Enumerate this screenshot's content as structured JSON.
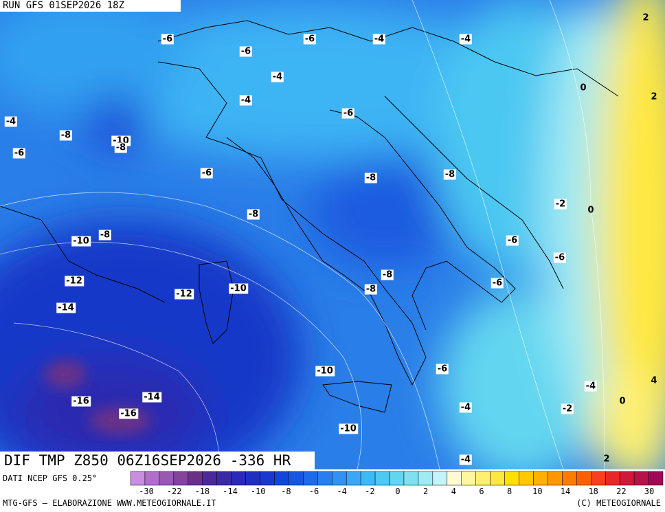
{
  "header": {
    "title": "RUN GFS 01SEP2026 18Z"
  },
  "map": {
    "contour_labels": [
      -6,
      -6,
      -4,
      -4,
      2,
      -6,
      -4,
      0,
      2,
      -4,
      -6,
      -4,
      -8,
      -10,
      -8,
      -6,
      -6,
      -8,
      -8,
      -2,
      0,
      -8,
      -8,
      -10,
      -6,
      -6,
      -8,
      -12,
      -6,
      -10,
      -8,
      -12,
      -14,
      -6,
      -10,
      4,
      -4,
      -14,
      0,
      -16,
      -4,
      -2,
      -16,
      -10,
      -4,
      2
    ]
  },
  "footer": {
    "field": "DIF TMP Z850 06Z16SEP2026 -336 HR",
    "source": "DATI NCEP GFS 0.25°",
    "credit": "MTG-GFS — ELABORAZIONE WWW.METEOGIORNALE.IT",
    "copyright": "(C) METEOGIORNALE"
  },
  "colorbar": {
    "ticks": [
      -30,
      -22,
      -18,
      -14,
      -10,
      -8,
      -6,
      -4,
      -2,
      0,
      2,
      4,
      6,
      8,
      10,
      14,
      18,
      22,
      30
    ],
    "colors": [
      "#c88ee0",
      "#b070c8",
      "#9a58b0",
      "#84449a",
      "#6a3088",
      "#4a2a9a",
      "#3a2aa8",
      "#2a2ab8",
      "#1e30c4",
      "#1838d0",
      "#1444dc",
      "#1656e4",
      "#1e6aec",
      "#287ef0",
      "#3292f4",
      "#3ca6f6",
      "#3cbaf4",
      "#4ccaf2",
      "#62d6f0",
      "#80e0f0",
      "#a0eaf4",
      "#c4f4f8",
      "#fffbd0",
      "#fff6a0",
      "#fff070",
      "#ffe840",
      "#ffe000",
      "#ffc800",
      "#ffb000",
      "#ff9800",
      "#ff7c00",
      "#ff6000",
      "#f84020",
      "#e82828",
      "#d01838",
      "#b81048",
      "#a00858"
    ]
  }
}
